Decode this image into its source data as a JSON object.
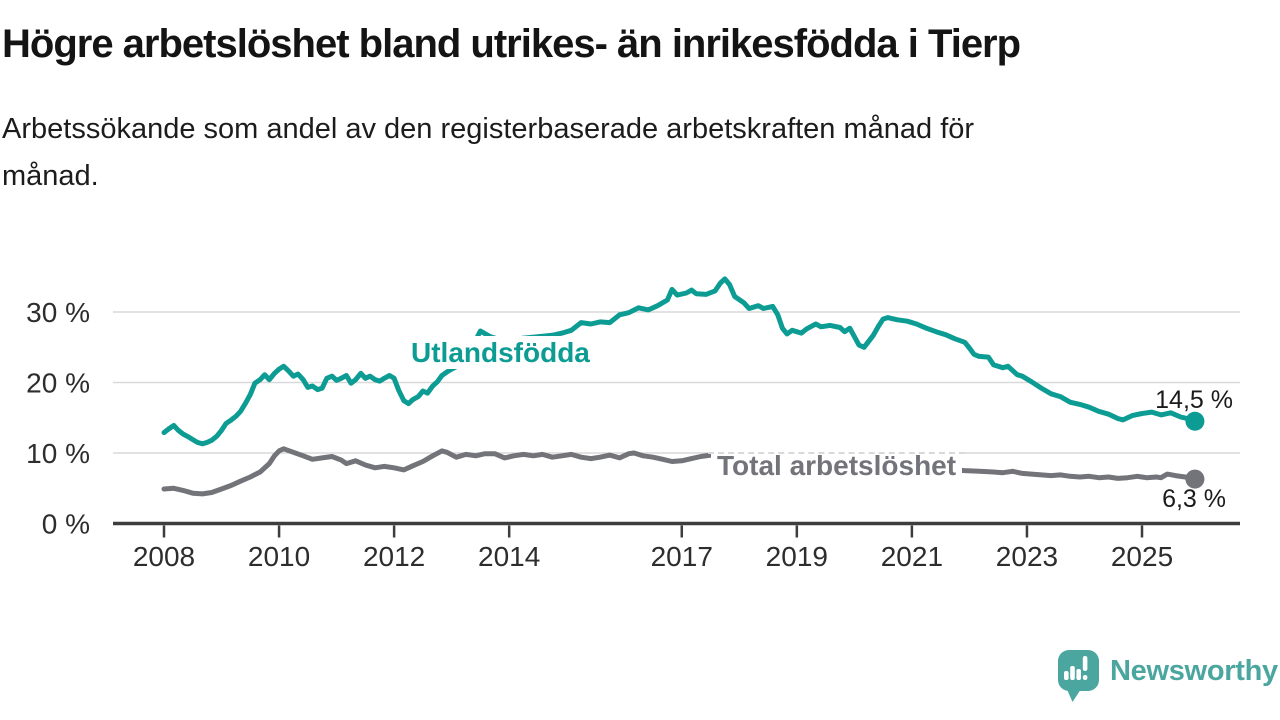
{
  "header": {
    "title": "Högre arbetslöshet bland utrikes- än inrikesfödda i Tierp",
    "subtitle_lines": [
      "Arbetssökande som andel av den registerbaserade arbetskraften månad för",
      "månad."
    ]
  },
  "chart_data": {
    "type": "line",
    "title": "Högre arbetslöshet bland utrikes- än inrikesfödda i Tierp",
    "xlabel": "",
    "ylabel": "Arbetssökande som andel av den registerbaserade arbetskraften, %",
    "grid": "horizontal-only",
    "x_axis": {
      "ticks": [
        2008,
        2010,
        2012,
        2014,
        2017,
        2019,
        2021,
        2023,
        2025
      ],
      "tick_labels": [
        "2008",
        "2010",
        "2012",
        "2014",
        "2017",
        "2019",
        "2021",
        "2023",
        "2025"
      ],
      "range": [
        2007.1,
        2026.7
      ]
    },
    "y_axis": {
      "ticks": [
        0,
        10,
        20,
        30
      ],
      "tick_labels": [
        "0 %",
        "10 %",
        "20 %",
        "30 %"
      ],
      "range": [
        0,
        40
      ],
      "unit": "%"
    },
    "series": [
      {
        "name": "Utlandsfödda",
        "color": "#0d9c93",
        "end_label": "14,5 %",
        "end_value": 14.5,
        "points": [
          [
            2008.0,
            12.9
          ],
          [
            2008.08,
            13.4
          ],
          [
            2008.17,
            13.9
          ],
          [
            2008.25,
            13.2
          ],
          [
            2008.33,
            12.7
          ],
          [
            2008.42,
            12.3
          ],
          [
            2008.5,
            11.9
          ],
          [
            2008.58,
            11.5
          ],
          [
            2008.67,
            11.3
          ],
          [
            2008.75,
            11.5
          ],
          [
            2008.83,
            11.8
          ],
          [
            2008.92,
            12.4
          ],
          [
            2009.0,
            13.2
          ],
          [
            2009.08,
            14.2
          ],
          [
            2009.17,
            14.7
          ],
          [
            2009.25,
            15.2
          ],
          [
            2009.33,
            15.9
          ],
          [
            2009.42,
            17.1
          ],
          [
            2009.5,
            18.3
          ],
          [
            2009.58,
            19.9
          ],
          [
            2009.67,
            20.4
          ],
          [
            2009.75,
            21.1
          ],
          [
            2009.83,
            20.4
          ],
          [
            2009.92,
            21.3
          ],
          [
            2010.0,
            21.9
          ],
          [
            2010.08,
            22.3
          ],
          [
            2010.17,
            21.6
          ],
          [
            2010.25,
            20.9
          ],
          [
            2010.33,
            21.2
          ],
          [
            2010.42,
            20.4
          ],
          [
            2010.5,
            19.3
          ],
          [
            2010.58,
            19.5
          ],
          [
            2010.67,
            19.0
          ],
          [
            2010.75,
            19.2
          ],
          [
            2010.83,
            20.6
          ],
          [
            2010.92,
            20.9
          ],
          [
            2011.0,
            20.3
          ],
          [
            2011.08,
            20.6
          ],
          [
            2011.17,
            21.0
          ],
          [
            2011.25,
            19.9
          ],
          [
            2011.33,
            20.4
          ],
          [
            2011.42,
            21.3
          ],
          [
            2011.5,
            20.6
          ],
          [
            2011.58,
            20.9
          ],
          [
            2011.67,
            20.4
          ],
          [
            2011.75,
            20.2
          ],
          [
            2011.83,
            20.6
          ],
          [
            2011.92,
            21.0
          ],
          [
            2012.0,
            20.6
          ],
          [
            2012.08,
            18.9
          ],
          [
            2012.17,
            17.4
          ],
          [
            2012.25,
            17.0
          ],
          [
            2012.33,
            17.6
          ],
          [
            2012.42,
            18.0
          ],
          [
            2012.5,
            18.8
          ],
          [
            2012.58,
            18.5
          ],
          [
            2012.67,
            19.5
          ],
          [
            2012.75,
            20.1
          ],
          [
            2012.83,
            21.0
          ],
          [
            2012.92,
            21.5
          ],
          [
            2013.0,
            21.9
          ],
          [
            2013.17,
            22.6
          ],
          [
            2013.33,
            24.6
          ],
          [
            2013.5,
            27.3
          ],
          [
            2013.67,
            26.5
          ],
          [
            2013.83,
            26.1
          ],
          [
            2014.0,
            26.0
          ],
          [
            2014.25,
            26.3
          ],
          [
            2014.5,
            26.5
          ],
          [
            2014.75,
            26.7
          ],
          [
            2014.92,
            27.0
          ],
          [
            2015.08,
            27.4
          ],
          [
            2015.25,
            28.5
          ],
          [
            2015.42,
            28.3
          ],
          [
            2015.58,
            28.6
          ],
          [
            2015.75,
            28.5
          ],
          [
            2015.92,
            29.6
          ],
          [
            2016.08,
            29.9
          ],
          [
            2016.25,
            30.6
          ],
          [
            2016.42,
            30.3
          ],
          [
            2016.58,
            30.9
          ],
          [
            2016.75,
            31.7
          ],
          [
            2016.83,
            33.2
          ],
          [
            2016.92,
            32.4
          ],
          [
            2017.08,
            32.7
          ],
          [
            2017.17,
            33.1
          ],
          [
            2017.25,
            32.6
          ],
          [
            2017.42,
            32.5
          ],
          [
            2017.58,
            33.0
          ],
          [
            2017.67,
            34.1
          ],
          [
            2017.75,
            34.7
          ],
          [
            2017.83,
            33.9
          ],
          [
            2017.92,
            32.2
          ],
          [
            2018.08,
            31.3
          ],
          [
            2018.17,
            30.5
          ],
          [
            2018.33,
            30.9
          ],
          [
            2018.42,
            30.5
          ],
          [
            2018.58,
            30.8
          ],
          [
            2018.67,
            29.6
          ],
          [
            2018.75,
            27.7
          ],
          [
            2018.83,
            26.9
          ],
          [
            2018.92,
            27.4
          ],
          [
            2019.08,
            27.0
          ],
          [
            2019.17,
            27.6
          ],
          [
            2019.33,
            28.3
          ],
          [
            2019.42,
            27.9
          ],
          [
            2019.58,
            28.1
          ],
          [
            2019.75,
            27.8
          ],
          [
            2019.83,
            27.2
          ],
          [
            2019.92,
            27.7
          ],
          [
            2020.08,
            25.3
          ],
          [
            2020.17,
            25.0
          ],
          [
            2020.33,
            26.7
          ],
          [
            2020.42,
            28.0
          ],
          [
            2020.5,
            29.0
          ],
          [
            2020.58,
            29.2
          ],
          [
            2020.75,
            28.9
          ],
          [
            2020.92,
            28.7
          ],
          [
            2021.08,
            28.3
          ],
          [
            2021.25,
            27.7
          ],
          [
            2021.42,
            27.2
          ],
          [
            2021.58,
            26.8
          ],
          [
            2021.75,
            26.2
          ],
          [
            2021.92,
            25.7
          ],
          [
            2022.0,
            24.9
          ],
          [
            2022.08,
            24.0
          ],
          [
            2022.17,
            23.7
          ],
          [
            2022.33,
            23.6
          ],
          [
            2022.42,
            22.5
          ],
          [
            2022.58,
            22.1
          ],
          [
            2022.67,
            22.3
          ],
          [
            2022.83,
            21.1
          ],
          [
            2022.92,
            20.9
          ],
          [
            2023.08,
            20.1
          ],
          [
            2023.25,
            19.2
          ],
          [
            2023.42,
            18.4
          ],
          [
            2023.58,
            18.0
          ],
          [
            2023.75,
            17.2
          ],
          [
            2023.92,
            16.9
          ],
          [
            2024.08,
            16.5
          ],
          [
            2024.25,
            15.9
          ],
          [
            2024.42,
            15.5
          ],
          [
            2024.58,
            14.9
          ],
          [
            2024.67,
            14.7
          ],
          [
            2024.83,
            15.3
          ],
          [
            2025.0,
            15.6
          ],
          [
            2025.17,
            15.8
          ],
          [
            2025.33,
            15.4
          ],
          [
            2025.5,
            15.7
          ],
          [
            2025.67,
            15.1
          ],
          [
            2025.83,
            14.8
          ],
          [
            2025.92,
            14.5
          ]
        ]
      },
      {
        "name": "Total arbetslöshet",
        "color": "#73737a",
        "end_label": "6,3 %",
        "end_value": 6.3,
        "points": [
          [
            2008.0,
            4.9
          ],
          [
            2008.17,
            5.0
          ],
          [
            2008.33,
            4.7
          ],
          [
            2008.5,
            4.3
          ],
          [
            2008.67,
            4.2
          ],
          [
            2008.83,
            4.4
          ],
          [
            2009.0,
            4.9
          ],
          [
            2009.17,
            5.4
          ],
          [
            2009.33,
            6.0
          ],
          [
            2009.5,
            6.6
          ],
          [
            2009.67,
            7.3
          ],
          [
            2009.83,
            8.5
          ],
          [
            2009.92,
            9.6
          ],
          [
            2010.0,
            10.3
          ],
          [
            2010.08,
            10.6
          ],
          [
            2010.25,
            10.1
          ],
          [
            2010.42,
            9.6
          ],
          [
            2010.58,
            9.1
          ],
          [
            2010.75,
            9.3
          ],
          [
            2010.92,
            9.5
          ],
          [
            2011.08,
            9.0
          ],
          [
            2011.17,
            8.5
          ],
          [
            2011.33,
            8.9
          ],
          [
            2011.5,
            8.3
          ],
          [
            2011.67,
            7.9
          ],
          [
            2011.83,
            8.1
          ],
          [
            2012.0,
            7.9
          ],
          [
            2012.17,
            7.6
          ],
          [
            2012.33,
            8.2
          ],
          [
            2012.5,
            8.8
          ],
          [
            2012.67,
            9.6
          ],
          [
            2012.83,
            10.3
          ],
          [
            2012.92,
            10.1
          ],
          [
            2013.08,
            9.4
          ],
          [
            2013.25,
            9.8
          ],
          [
            2013.42,
            9.6
          ],
          [
            2013.58,
            9.9
          ],
          [
            2013.75,
            9.9
          ],
          [
            2013.92,
            9.3
          ],
          [
            2014.08,
            9.6
          ],
          [
            2014.25,
            9.8
          ],
          [
            2014.42,
            9.6
          ],
          [
            2014.58,
            9.8
          ],
          [
            2014.75,
            9.4
          ],
          [
            2014.92,
            9.6
          ],
          [
            2015.08,
            9.8
          ],
          [
            2015.25,
            9.4
          ],
          [
            2015.42,
            9.2
          ],
          [
            2015.58,
            9.4
          ],
          [
            2015.75,
            9.7
          ],
          [
            2015.92,
            9.3
          ],
          [
            2016.08,
            9.9
          ],
          [
            2016.17,
            10.0
          ],
          [
            2016.33,
            9.6
          ],
          [
            2016.5,
            9.4
          ],
          [
            2016.67,
            9.1
          ],
          [
            2016.83,
            8.8
          ],
          [
            2017.0,
            8.9
          ],
          [
            2017.17,
            9.2
          ],
          [
            2017.33,
            9.5
          ],
          [
            2017.5,
            9.7
          ],
          [
            2017.67,
            9.4
          ],
          [
            2017.92,
            9.2
          ],
          [
            2018.25,
            9.0
          ],
          [
            2018.58,
            8.7
          ],
          [
            2018.92,
            8.4
          ],
          [
            2019.25,
            8.2
          ],
          [
            2019.58,
            8.1
          ],
          [
            2019.92,
            8.0
          ],
          [
            2020.25,
            8.2
          ],
          [
            2020.58,
            8.3
          ],
          [
            2020.92,
            8.1
          ],
          [
            2021.25,
            7.9
          ],
          [
            2021.58,
            7.7
          ],
          [
            2021.92,
            7.5
          ],
          [
            2022.17,
            7.4
          ],
          [
            2022.42,
            7.3
          ],
          [
            2022.58,
            7.2
          ],
          [
            2022.75,
            7.4
          ],
          [
            2022.92,
            7.1
          ],
          [
            2023.08,
            7.0
          ],
          [
            2023.25,
            6.9
          ],
          [
            2023.42,
            6.8
          ],
          [
            2023.58,
            6.9
          ],
          [
            2023.75,
            6.7
          ],
          [
            2023.92,
            6.6
          ],
          [
            2024.08,
            6.7
          ],
          [
            2024.25,
            6.5
          ],
          [
            2024.42,
            6.6
          ],
          [
            2024.58,
            6.4
          ],
          [
            2024.75,
            6.5
          ],
          [
            2024.92,
            6.7
          ],
          [
            2025.08,
            6.5
          ],
          [
            2025.25,
            6.6
          ],
          [
            2025.33,
            6.5
          ],
          [
            2025.44,
            7.0
          ],
          [
            2025.58,
            6.8
          ],
          [
            2025.75,
            6.6
          ],
          [
            2025.92,
            6.3
          ]
        ]
      }
    ]
  },
  "logo": {
    "text": "Newsworthy",
    "color": "#4ba6a0",
    "icon": "newsworthy-speech-bubble-bar-chart"
  },
  "colors": {
    "background": "#ffffff",
    "gridline": "#d9d9d9",
    "axis": "#3d3d3d",
    "tick_text": "#2d2d2d",
    "title_text": "#141414",
    "series_foreign_born": "#0d9c93",
    "series_total": "#73737a"
  }
}
